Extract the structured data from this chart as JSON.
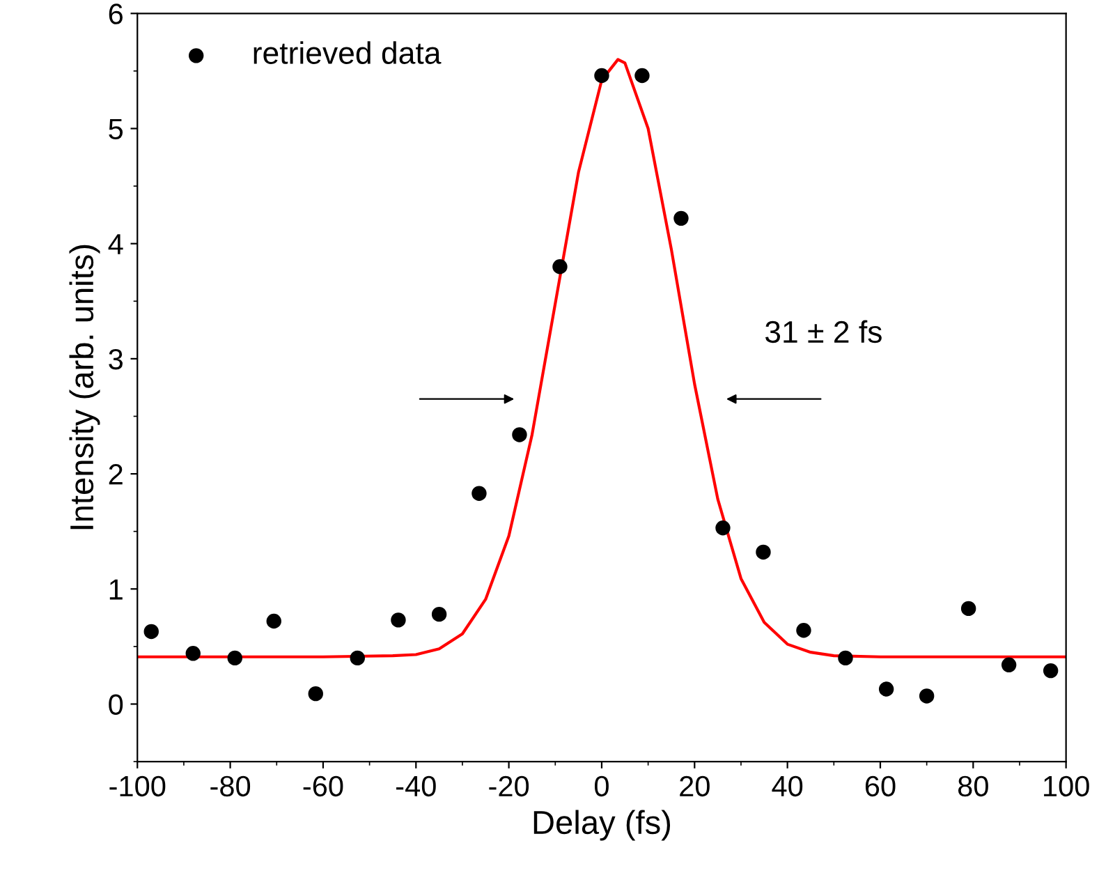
{
  "chart_data": {
    "type": "scatter",
    "xlabel": "Delay (fs)",
    "ylabel": "Intensity (arb. units)",
    "xlim": [
      -100,
      100
    ],
    "xticks": [
      -100,
      -80,
      -60,
      -40,
      -20,
      0,
      20,
      40,
      60,
      80,
      100
    ],
    "ylim": [
      -0.5,
      6
    ],
    "yticks": [
      0,
      1,
      2,
      3,
      4,
      5,
      6
    ],
    "legend": "top left",
    "grid": false,
    "annotations": [
      "31 ± 2 fs"
    ],
    "series": [
      {
        "name": "retrieved data",
        "color": "#000000",
        "marker": "circle",
        "x": [
          -97,
          -88,
          -79,
          -70.6,
          -61.6,
          -52.6,
          -43.8,
          -35,
          -26.4,
          -17.7,
          -9,
          0,
          8.7,
          17.1,
          26.1,
          34.8,
          43.5,
          52.5,
          61.3,
          70,
          79,
          87.7,
          96.7
        ],
        "values": [
          0.63,
          0.44,
          0.4,
          0.72,
          0.09,
          0.4,
          0.73,
          0.78,
          1.83,
          2.34,
          3.8,
          5.46,
          5.46,
          4.22,
          1.53,
          1.32,
          0.64,
          0.4,
          0.13,
          0.07,
          0.83,
          0.34,
          0.29
        ]
      },
      {
        "type": "line",
        "color": "#ff0000",
        "marker": "none",
        "x": [
          -100,
          -60,
          -45,
          -40,
          -35,
          -30,
          -25,
          -20,
          -15,
          -10,
          -5,
          0,
          3.5,
          5,
          10,
          15,
          20,
          25,
          30,
          35,
          40,
          45,
          50,
          60,
          100
        ],
        "values": [
          0.41,
          0.41,
          0.42,
          0.43,
          0.48,
          0.61,
          0.91,
          1.46,
          2.34,
          3.48,
          4.62,
          5.42,
          5.6,
          5.57,
          5.0,
          3.95,
          2.78,
          1.78,
          1.09,
          0.71,
          0.52,
          0.45,
          0.42,
          0.41,
          0.41
        ]
      }
    ]
  }
}
